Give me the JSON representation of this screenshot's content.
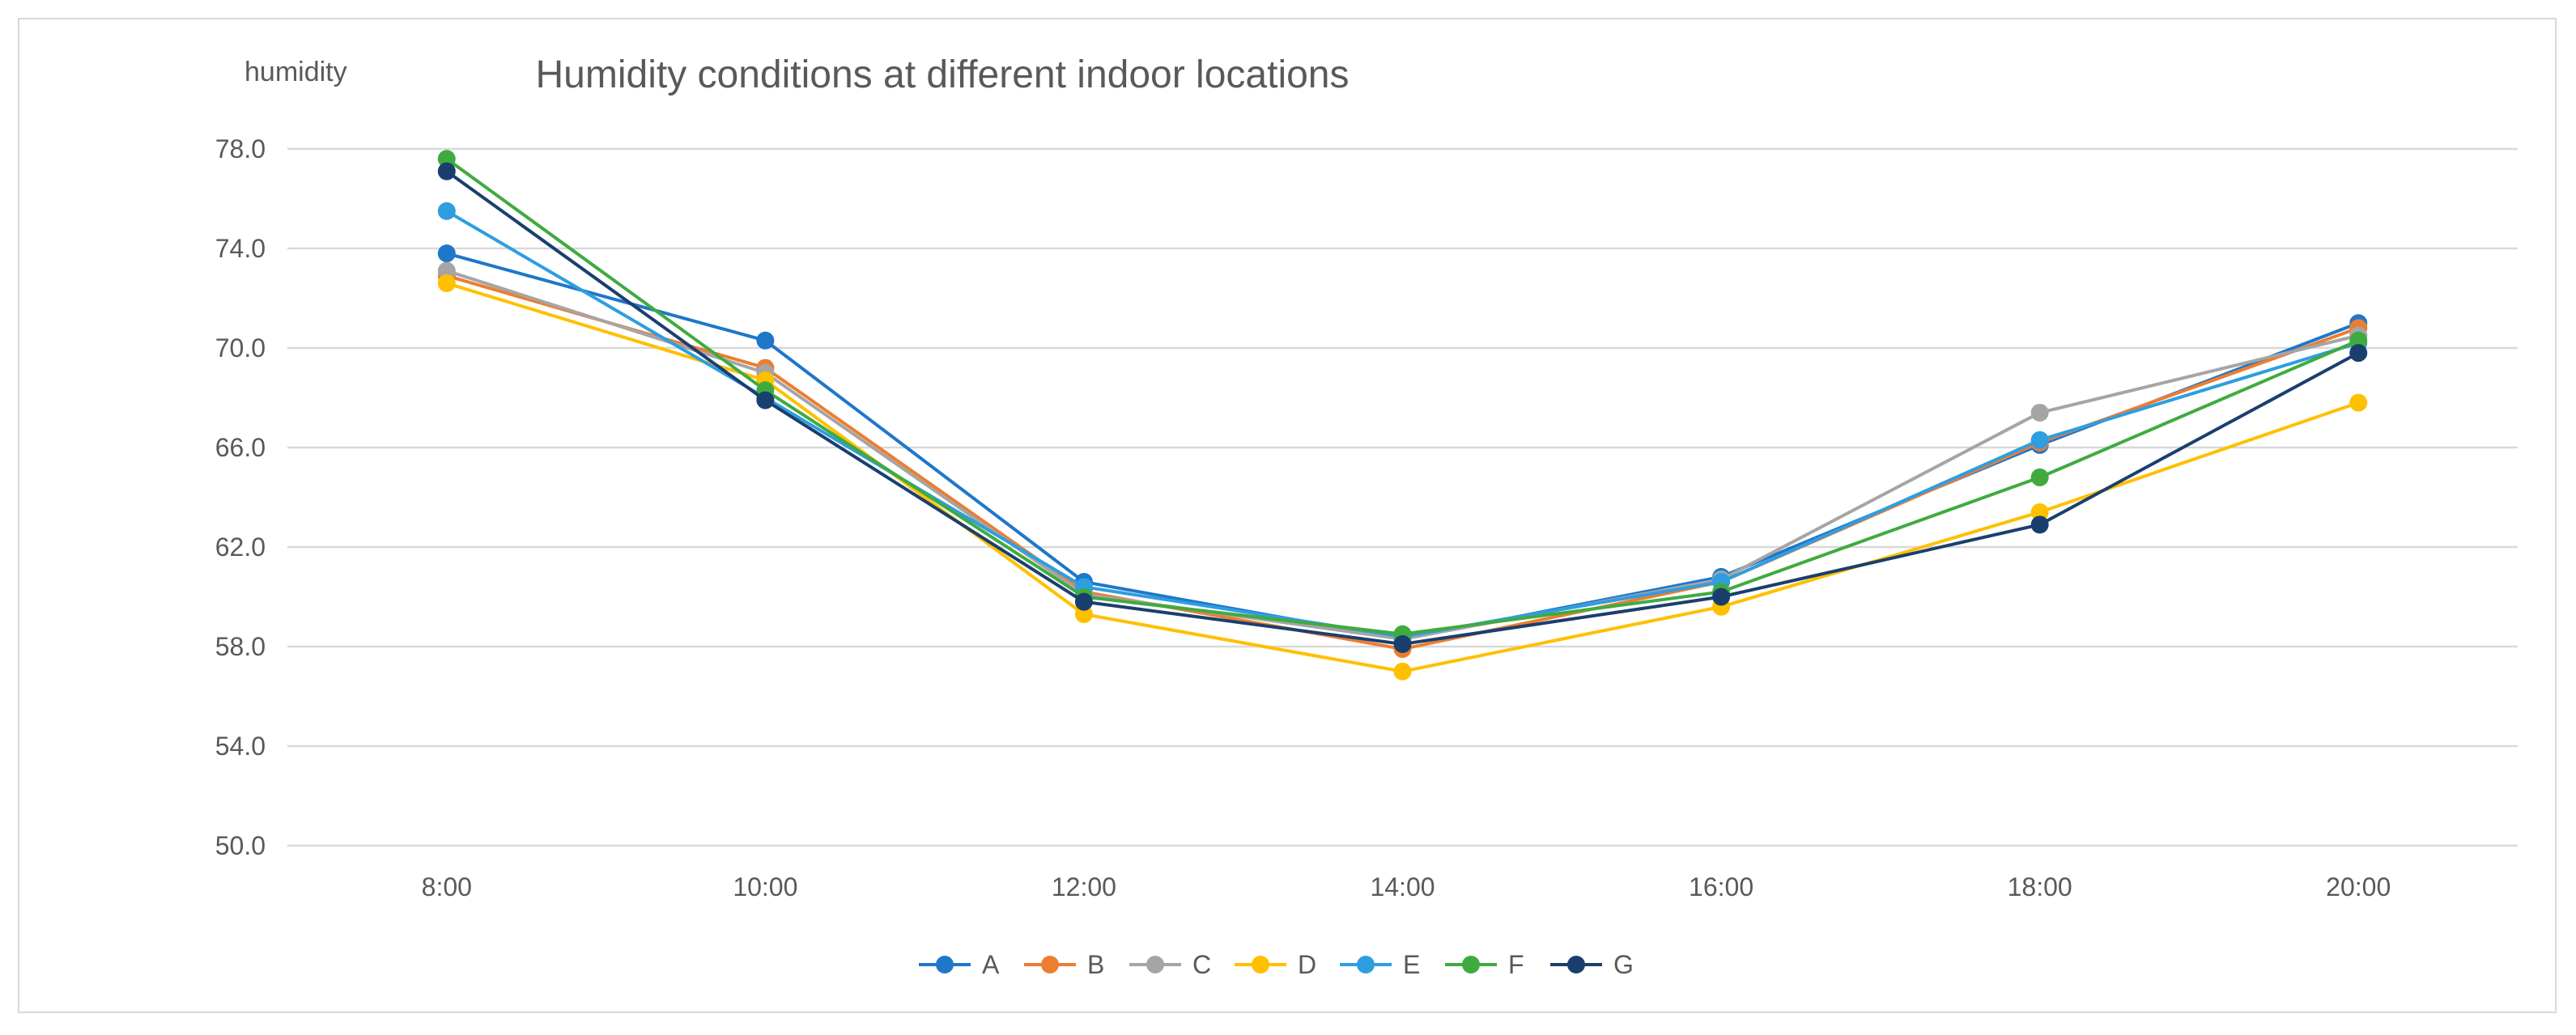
{
  "chart_data": {
    "type": "line",
    "title": "Humidity conditions at different indoor locations",
    "ylabel": "humidity",
    "xlabel": "",
    "ylim": [
      50.0,
      78.0
    ],
    "y_ticks": [
      "78.0",
      "74.0",
      "70.0",
      "66.0",
      "62.0",
      "58.0",
      "54.0",
      "50.0"
    ],
    "categories": [
      "8:00",
      "10:00",
      "12:00",
      "14:00",
      "16:00",
      "18:00",
      "20:00"
    ],
    "legend_position": "bottom-center",
    "grid": true,
    "series": [
      {
        "name": "A",
        "color": "#1f77c9",
        "values": [
          73.8,
          70.3,
          60.6,
          58.3,
          60.8,
          66.1,
          71.0
        ]
      },
      {
        "name": "B",
        "color": "#ed7d31",
        "values": [
          72.9,
          69.2,
          60.2,
          57.9,
          60.6,
          66.2,
          70.8
        ]
      },
      {
        "name": "C",
        "color": "#a5a5a5",
        "values": [
          73.1,
          69.0,
          60.1,
          58.3,
          60.7,
          67.4,
          70.5
        ]
      },
      {
        "name": "D",
        "color": "#ffc000",
        "values": [
          72.6,
          68.7,
          59.3,
          57.0,
          59.6,
          63.4,
          67.8
        ]
      },
      {
        "name": "E",
        "color": "#2e9ee0",
        "values": [
          75.5,
          68.0,
          60.4,
          58.4,
          60.6,
          66.3,
          70.2
        ]
      },
      {
        "name": "F",
        "color": "#3fab3f",
        "values": [
          77.6,
          68.3,
          60.0,
          58.5,
          60.2,
          64.8,
          70.3
        ]
      },
      {
        "name": "G",
        "color": "#1a3f6f",
        "values": [
          77.1,
          67.9,
          59.8,
          58.1,
          60.0,
          62.9,
          69.8
        ]
      }
    ]
  }
}
